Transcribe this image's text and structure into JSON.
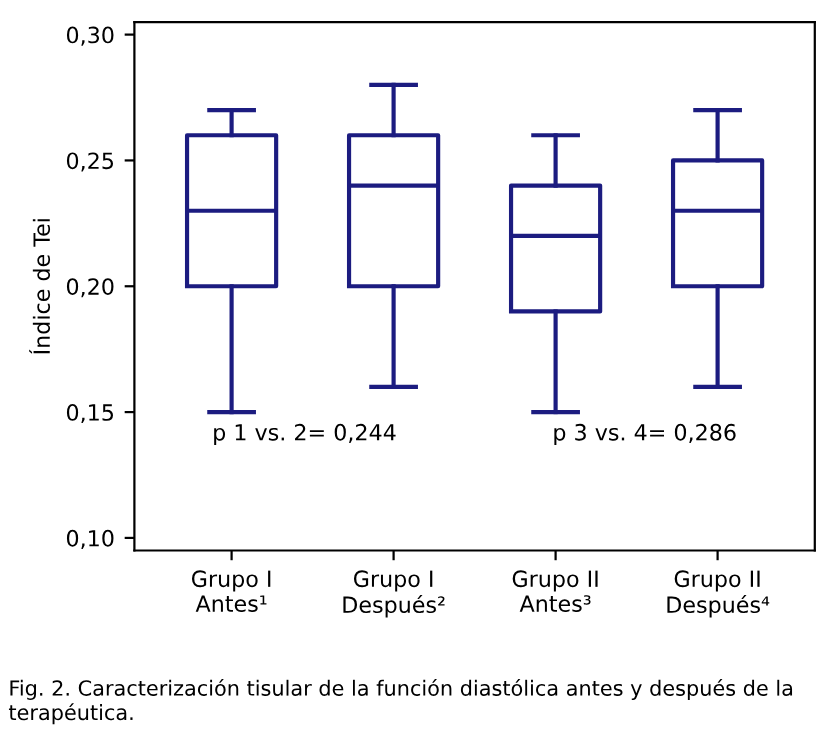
{
  "chart_data": {
    "type": "box",
    "ylabel": "Índice de Tei",
    "categories": [
      "Grupo I\nAntes¹",
      "Grupo I\nDespués²",
      "Grupo II\nAntes³",
      "Grupo II\nDespués⁴"
    ],
    "boxes": [
      {
        "low": 0.15,
        "q1": 0.2,
        "median": 0.23,
        "q3": 0.26,
        "high": 0.27
      },
      {
        "low": 0.16,
        "q1": 0.2,
        "median": 0.24,
        "q3": 0.26,
        "high": 0.28
      },
      {
        "low": 0.15,
        "q1": 0.19,
        "median": 0.22,
        "q3": 0.24,
        "high": 0.26
      },
      {
        "low": 0.16,
        "q1": 0.2,
        "median": 0.23,
        "q3": 0.25,
        "high": 0.27
      }
    ],
    "color": "#1c1c80",
    "ylim": [
      0.095,
      0.305
    ],
    "yticks": [
      {
        "value": 0.1,
        "label": "0,10"
      },
      {
        "value": 0.15,
        "label": "0,15"
      },
      {
        "value": 0.2,
        "label": "0,20"
      },
      {
        "value": 0.25,
        "label": "0,25"
      },
      {
        "value": 0.3,
        "label": "0,30"
      }
    ],
    "grid": false,
    "annotations": [
      "p 1 vs. 2= 0,244",
      "p 3 vs. 4= 0,286",
      "Fig. 2. Caracterización tisular de la función diastólica antes y después de la terapéutica."
    ]
  }
}
